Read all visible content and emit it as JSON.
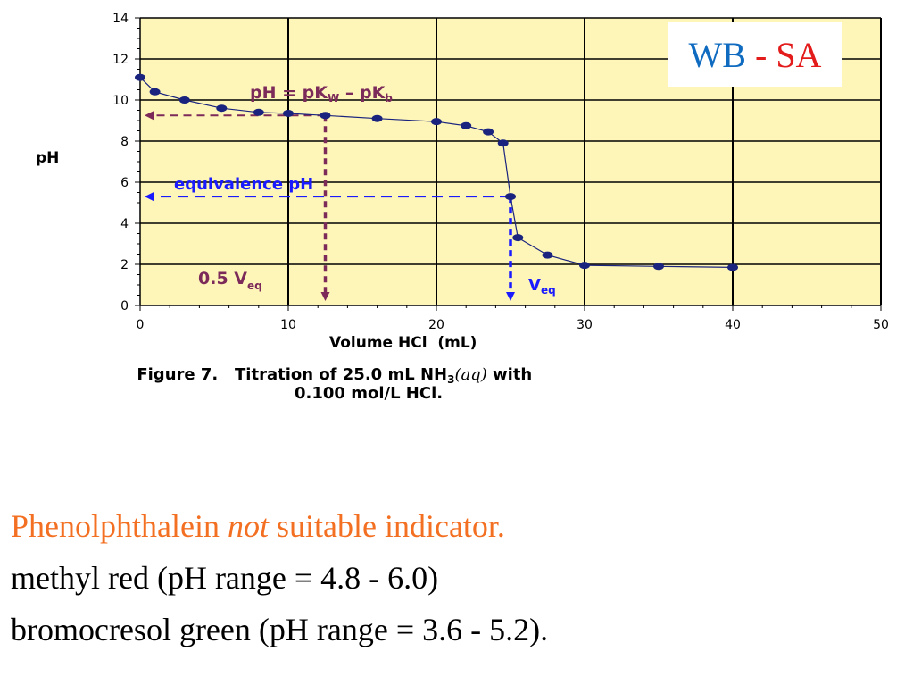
{
  "tag": {
    "weak": "WB",
    "sep": " - ",
    "strong": "SA",
    "weak_color": "#0f6bc0",
    "strong_color": "#e31b1b"
  },
  "chart_data": {
    "type": "line",
    "xlabel": "Volume HCl  (mL)",
    "ylabel": "pH",
    "xlim": [
      0,
      50
    ],
    "ylim": [
      0,
      14
    ],
    "x_ticks": [
      "0",
      "10",
      "20",
      "30",
      "40",
      "50"
    ],
    "y_ticks": [
      "0",
      "2",
      "4",
      "6",
      "8",
      "10",
      "12",
      "14"
    ],
    "grid": true,
    "background": "#fef6b8",
    "series": [
      {
        "color": "#1a237e",
        "x": [
          0,
          1,
          3,
          5.5,
          8,
          10,
          12.5,
          16,
          20,
          22,
          23.5,
          24.5,
          25,
          25.5,
          27.5,
          30,
          35,
          40
        ],
        "y": [
          11.1,
          10.4,
          10.0,
          9.6,
          9.4,
          9.35,
          9.25,
          9.1,
          8.95,
          8.75,
          8.45,
          7.9,
          5.3,
          3.3,
          2.45,
          1.95,
          1.9,
          1.85
        ]
      }
    ],
    "annotations": {
      "pk_label": "pH = pK",
      "pk_sub_w": "W",
      "pk_mid": " – pK",
      "pk_sub_b": "b",
      "pk_y": 9.25,
      "half_veq_x": 12.5,
      "half_veq_label": "0.5 V",
      "half_veq_sub": "eq",
      "equiv_label": "equivalence pH",
      "equiv_y": 5.3,
      "veq_x": 25,
      "veq_label": "V",
      "veq_sub": "eq",
      "purple": "#7b2a5a",
      "blue": "#1a1aff"
    },
    "caption_line1": "Figure 7.   Titration of 25.0 mL NH",
    "caption_sub": "3",
    "caption_aq": "(aq)",
    "caption_end": " with",
    "caption_line2": "0.100 mol/L HCl."
  },
  "notes": {
    "line1_a": "Phenolphthalein ",
    "line1_b": "not",
    "line1_c": " suitable indicator.",
    "line1_color": "#f36f21",
    "line2": "methyl red (pH range = 4.8 - 6.0)",
    "line3": "bromocresol green (pH range = 3.6 - 5.2)."
  }
}
